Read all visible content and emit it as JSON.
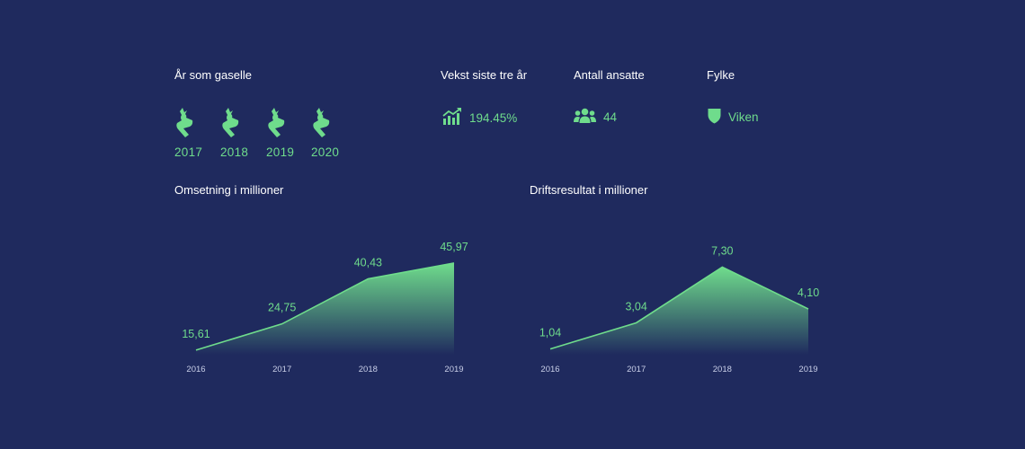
{
  "gazelle": {
    "title": "År som gaselle",
    "years": [
      "2017",
      "2018",
      "2019",
      "2020"
    ]
  },
  "growth": {
    "title": "Vekst siste tre år",
    "value": "194.45%",
    "icon": "growth-chart-icon"
  },
  "employees": {
    "title": "Antall ansatte",
    "value": "44",
    "icon": "people-icon"
  },
  "county": {
    "title": "Fylke",
    "value": "Viken",
    "icon": "shield-icon"
  },
  "colors": {
    "background": "#1f2a5e",
    "accent": "#6fdc8c",
    "axis_text": "#c9cfe8"
  },
  "chart_data": [
    {
      "type": "area",
      "title": "Omsetning i millioner",
      "categories": [
        "2016",
        "2017",
        "2018",
        "2019"
      ],
      "values": [
        15.61,
        24.75,
        40.43,
        45.97
      ],
      "value_labels": [
        "15,61",
        "24,75",
        "40,43",
        "45,97"
      ],
      "ylim": [
        14,
        50
      ]
    },
    {
      "type": "area",
      "title": "Driftsresultat i millioner",
      "categories": [
        "2016",
        "2017",
        "2018",
        "2019"
      ],
      "values": [
        1.04,
        3.04,
        7.3,
        4.1
      ],
      "value_labels": [
        "1,04",
        "3,04",
        "7,30",
        "4,10"
      ],
      "ylim": [
        0.6,
        8.5
      ]
    }
  ]
}
